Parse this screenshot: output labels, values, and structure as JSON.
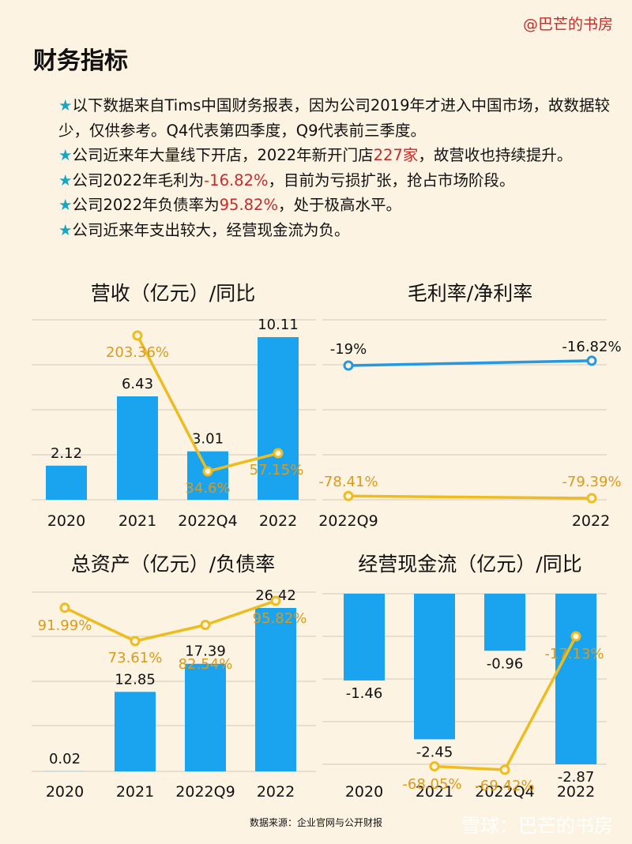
{
  "brand": "@巴芒的书房",
  "page_title": "财务指标",
  "bullets": [
    [
      "以下数据来自Tims中国财务报表，因为公司2019年才进入中国市场，故数据较少，仅供参考。Q4代表第四季度，Q9代表前三季度。"
    ],
    [
      "公司近来年大量线下开店，2022年新开门店",
      "227家",
      "，故营收也持续提升。"
    ],
    [
      "公司2022年毛利为",
      "-16.82%",
      "，目前为亏损扩张，抢占市场阶段。"
    ],
    [
      "公司2022年负债率为",
      "95.82%",
      "，处于极高水平。"
    ],
    [
      "公司近来年支出较大，经营现金流为负。"
    ]
  ],
  "footer": "数据来源：企业官网与公开财报",
  "watermark": "雪球：巴芒的书房",
  "colors": {
    "bar": "#1aa3ef",
    "line_yellow": "#edbd1f",
    "line_blue": "#2698e0",
    "label_orange": "#dc9a1a",
    "highlight_red": "#c62b2b"
  },
  "chart_data": [
    {
      "title": "营收（亿元）/同比",
      "type": "bar+line",
      "categories": [
        "2020",
        "2021",
        "2022Q4",
        "2022"
      ],
      "bar_series": {
        "values": [
          2.12,
          6.43,
          3.01,
          10.11
        ],
        "labels": [
          "2.12",
          "6.43",
          "3.01",
          "10.11"
        ]
      },
      "line_series": {
        "values": [
          null,
          203.36,
          34.6,
          57.15
        ],
        "labels": [
          "",
          "203.36%",
          "34.6%",
          "57.15%"
        ]
      }
    },
    {
      "title": "毛利率/净利率",
      "type": "line",
      "categories": [
        "2022Q9",
        "2022"
      ],
      "series": [
        {
          "values": [
            -19,
            -16.82
          ],
          "labels": [
            "-19%",
            "-16.82%"
          ],
          "color": "#2698e0"
        },
        {
          "values": [
            -78.41,
            -79.39
          ],
          "labels": [
            "-78.41%",
            "-79.39%"
          ],
          "color": "#edbd1f"
        }
      ]
    },
    {
      "title": "总资产（亿元）/负债率",
      "type": "bar+line",
      "categories": [
        "2020",
        "2021",
        "2022Q9",
        "2022"
      ],
      "bar_series": {
        "values": [
          0.02,
          12.85,
          17.39,
          26.42
        ],
        "labels": [
          "0.02",
          "12.85",
          "17.39",
          "26.42"
        ]
      },
      "line_series": {
        "values": [
          91.99,
          73.61,
          82.54,
          95.82
        ],
        "labels": [
          "91.99%",
          "73.61%",
          "82.54%",
          "95.82%"
        ]
      }
    },
    {
      "title": "经营现金流（亿元）/同比",
      "type": "bar+line",
      "categories": [
        "2020",
        "2021",
        "2022Q4",
        "2022"
      ],
      "bar_series": {
        "values": [
          -1.46,
          -2.45,
          -0.96,
          -2.87
        ],
        "labels": [
          "-1.46",
          "-2.45",
          "-0.96",
          "-2.87"
        ]
      },
      "line_series": {
        "values": [
          null,
          -68.05,
          -69.42,
          -17.13
        ],
        "labels": [
          "",
          "-68.05%",
          "-69.42%",
          "-17.13%"
        ]
      }
    }
  ]
}
